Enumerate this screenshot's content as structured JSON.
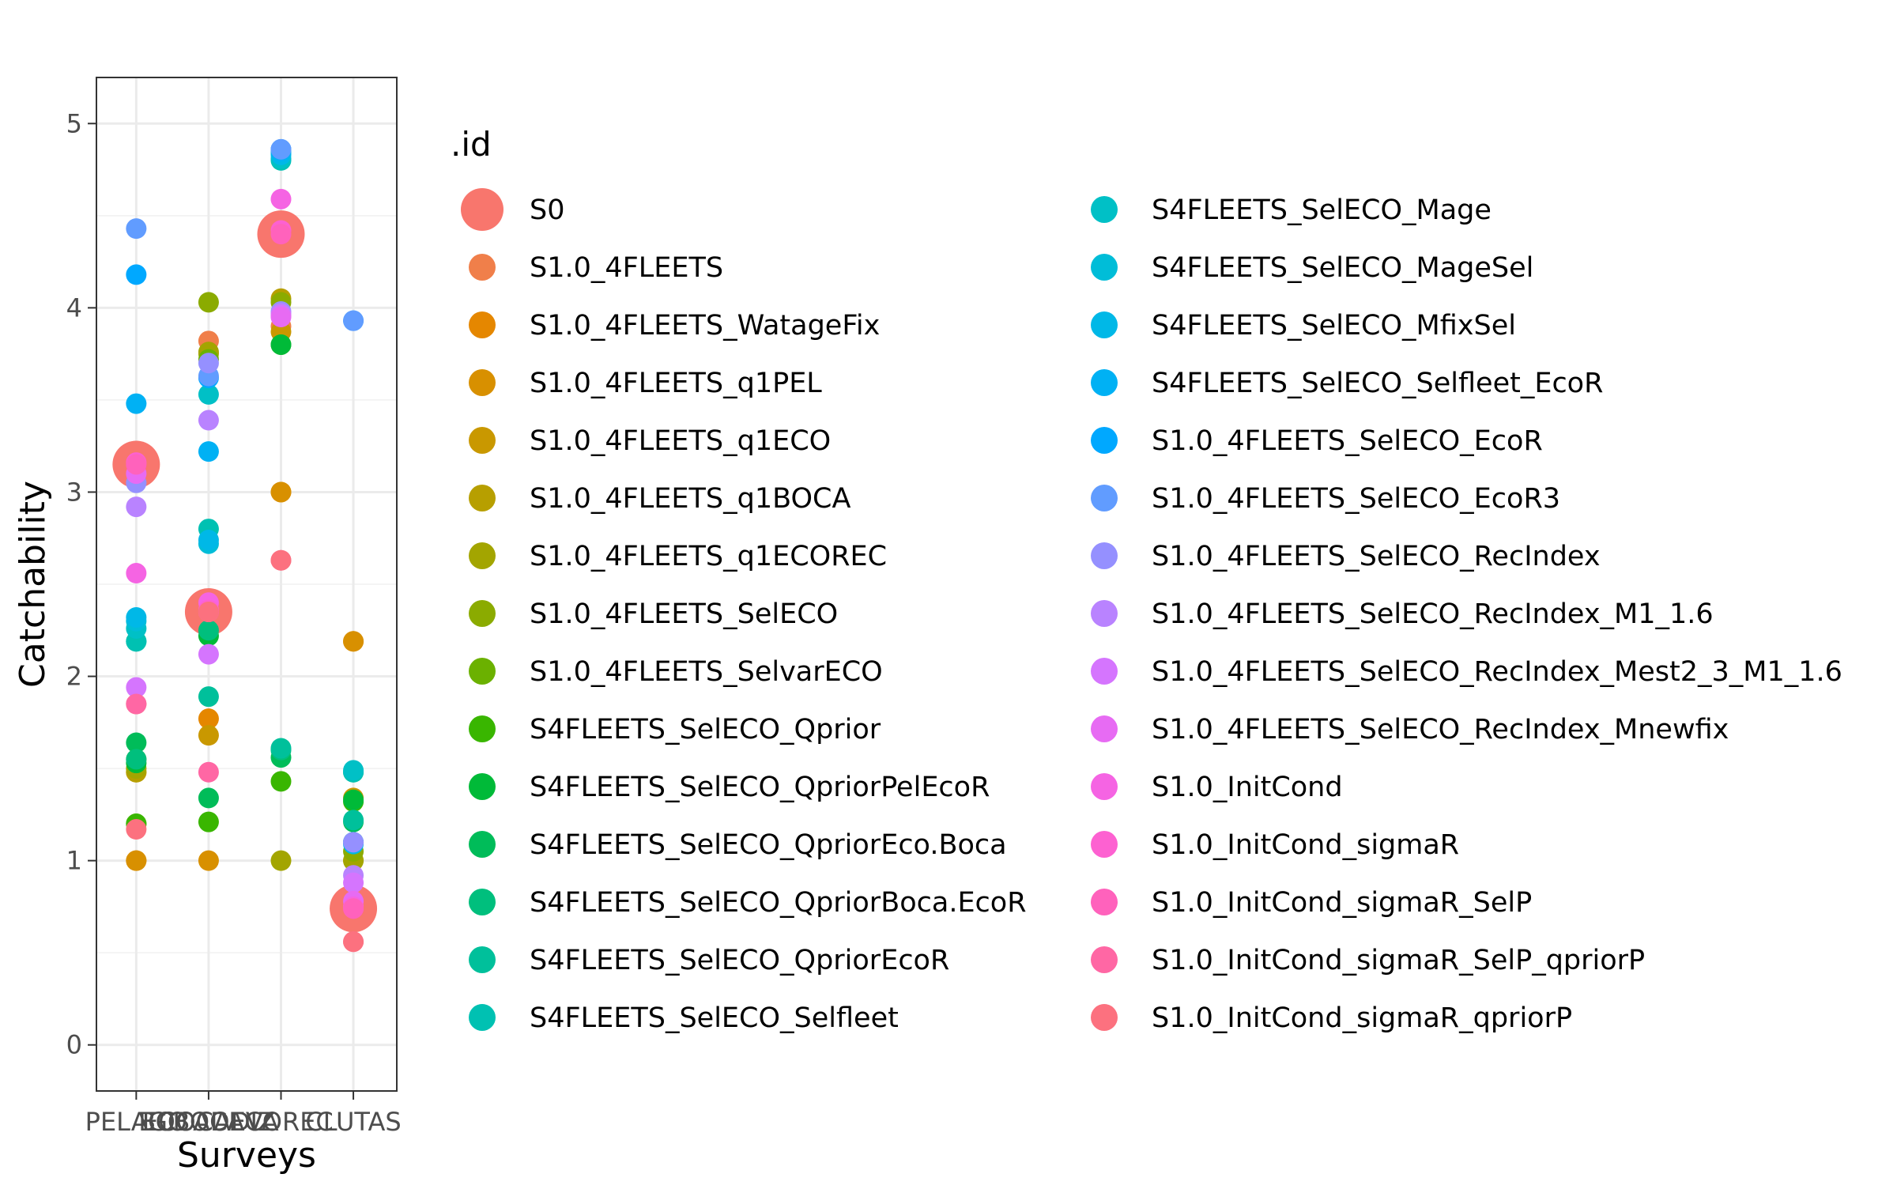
{
  "chart_data": {
    "type": "scatter",
    "xlabel": "Surveys",
    "ylabel": "Catchability",
    "categories": [
      "PELAGO",
      "ECOCADIZ",
      "BOCADEVA",
      "ECOREC",
      "BOCA",
      "CLUTAS"
    ],
    "category_positions": [
      1,
      2,
      2,
      3,
      2,
      4
    ],
    "x_tick_labels": [
      "PELAGO",
      "ECOCADIZ",
      "BOCADEVA",
      "ECOREC",
      "BOCA",
      "CLUTAS"
    ],
    "xlim": [
      0.45,
      4.6
    ],
    "ylim": [
      -0.25,
      5.25
    ],
    "y_ticks": [
      "0",
      "1",
      "2",
      "3",
      "4",
      "5"
    ],
    "grid": true,
    "legend_title": ".id",
    "legend_position": "right",
    "series": [
      {
        "name": "S0",
        "color": "#F8766D",
        "size": "large",
        "points": [
          [
            1,
            3.15
          ],
          [
            2,
            2.35
          ],
          [
            3,
            4.4
          ],
          [
            4,
            0.74
          ]
        ]
      },
      {
        "name": "S1.0_4FLEETS",
        "color": "#F07F4A",
        "points": [
          [
            1,
            1.85
          ],
          [
            2,
            3.82
          ],
          [
            3,
            3.9
          ],
          [
            4,
            0.74
          ]
        ]
      },
      {
        "name": "S1.0_4FLEETS_WatageFix",
        "color": "#E58700",
        "points": [
          [
            1,
            1.0
          ],
          [
            2,
            1.77
          ],
          [
            3,
            3.0
          ],
          [
            4,
            2.19
          ]
        ]
      },
      {
        "name": "S1.0_4FLEETS_q1PEL",
        "color": "#D89000",
        "points": [
          [
            1,
            1.0
          ],
          [
            2,
            1.0
          ],
          [
            3,
            3.0
          ],
          [
            4,
            2.19
          ]
        ]
      },
      {
        "name": "S1.0_4FLEETS_q1ECO",
        "color": "#C99800",
        "points": [
          [
            1,
            1.48
          ],
          [
            2,
            1.68
          ],
          [
            3,
            3.87
          ],
          [
            4,
            1.34
          ]
        ]
      },
      {
        "name": "S1.0_4FLEETS_q1BOCA",
        "color": "#B79F00",
        "points": [
          [
            1,
            1.48
          ],
          [
            2,
            3.75
          ],
          [
            3,
            4.05
          ],
          [
            4,
            1.0
          ]
        ]
      },
      {
        "name": "S1.0_4FLEETS_q1ECOREC",
        "color": "#A3A500",
        "points": [
          [
            1,
            1.5
          ],
          [
            2,
            3.76
          ],
          [
            3,
            1.0
          ],
          [
            4,
            1.0
          ]
        ]
      },
      {
        "name": "S1.0_4FLEETS_SelECO",
        "color": "#8BAB00",
        "points": [
          [
            1,
            1.55
          ],
          [
            2,
            4.03
          ],
          [
            3,
            4.03
          ],
          [
            4,
            1.05
          ]
        ]
      },
      {
        "name": "S1.0_4FLEETS_SelvarECO",
        "color": "#6BB100",
        "points": [
          [
            1,
            1.2
          ],
          [
            2,
            3.72
          ],
          [
            3,
            3.8
          ],
          [
            4,
            1.1
          ]
        ]
      },
      {
        "name": "S4FLEETS_SelECO_Qprior",
        "color": "#39B600",
        "points": [
          [
            1,
            1.2
          ],
          [
            2,
            1.21
          ],
          [
            3,
            1.43
          ],
          [
            4,
            1.32
          ]
        ]
      },
      {
        "name": "S4FLEETS_SelECO_QpriorPelEcoR",
        "color": "#00BA38",
        "points": [
          [
            1,
            1.53
          ],
          [
            2,
            2.22
          ],
          [
            3,
            3.8
          ],
          [
            4,
            1.33
          ]
        ]
      },
      {
        "name": "S4FLEETS_SelECO_QpriorEco.Boca",
        "color": "#00BC59",
        "points": [
          [
            1,
            1.64
          ],
          [
            2,
            1.34
          ],
          [
            3,
            1.56
          ],
          [
            4,
            1.21
          ]
        ]
      },
      {
        "name": "S4FLEETS_SelECO_QpriorBoca.EcoR",
        "color": "#00BF7D",
        "points": [
          [
            1,
            1.55
          ],
          [
            2,
            2.25
          ],
          [
            3,
            1.6
          ],
          [
            4,
            1.48
          ]
        ]
      },
      {
        "name": "S4FLEETS_SelECO_QpriorEcoR",
        "color": "#00C09B",
        "points": [
          [
            1,
            2.19
          ],
          [
            2,
            1.89
          ],
          [
            3,
            1.61
          ],
          [
            4,
            1.22
          ]
        ]
      },
      {
        "name": "S4FLEETS_SelECO_Selfleet",
        "color": "#00C1B2",
        "points": [
          [
            1,
            2.19
          ],
          [
            2,
            2.8
          ],
          [
            3,
            4.8
          ],
          [
            4,
            1.48
          ]
        ]
      },
      {
        "name": "S4FLEETS_SelECO_Mage",
        "color": "#00C0C6",
        "points": [
          [
            1,
            2.26
          ],
          [
            2,
            3.53
          ],
          [
            3,
            4.81
          ],
          [
            4,
            1.49
          ]
        ]
      },
      {
        "name": "S4FLEETS_SelECO_MageSel",
        "color": "#00BDD8",
        "points": [
          [
            1,
            2.3
          ],
          [
            2,
            2.72
          ],
          [
            3,
            4.84
          ],
          [
            4,
            1.1
          ]
        ]
      },
      {
        "name": "S4FLEETS_SelECO_MfixSel",
        "color": "#00B8E7",
        "points": [
          [
            1,
            2.32
          ],
          [
            2,
            2.74
          ],
          [
            3,
            4.83
          ],
          [
            4,
            1.09
          ]
        ]
      },
      {
        "name": "S4FLEETS_SelECO_Selfleet_EcoR",
        "color": "#00B1F4",
        "points": [
          [
            1,
            3.48
          ],
          [
            2,
            3.22
          ],
          [
            3,
            4.85
          ],
          [
            4,
            1.1
          ]
        ]
      },
      {
        "name": "S1.0_4FLEETS_SelECO_EcoR",
        "color": "#00A8FF",
        "points": [
          [
            1,
            4.18
          ],
          [
            2,
            3.62
          ],
          [
            3,
            4.86
          ],
          [
            4,
            3.93
          ]
        ]
      },
      {
        "name": "S1.0_4FLEETS_SelECO_EcoR3",
        "color": "#619CFF",
        "points": [
          [
            1,
            4.43
          ],
          [
            2,
            3.63
          ],
          [
            3,
            4.86
          ],
          [
            4,
            3.93
          ]
        ]
      },
      {
        "name": "S1.0_4FLEETS_SelECO_RecIndex",
        "color": "#9590FF",
        "points": [
          [
            1,
            3.05
          ],
          [
            2,
            3.7
          ],
          [
            3,
            3.98
          ],
          [
            4,
            1.1
          ]
        ]
      },
      {
        "name": "S1.0_4FLEETS_SelECO_RecIndex_M1_1.6",
        "color": "#B983FF",
        "points": [
          [
            1,
            2.92
          ],
          [
            2,
            3.39
          ],
          [
            3,
            3.97
          ],
          [
            4,
            0.92
          ]
        ]
      },
      {
        "name": "S1.0_4FLEETS_SelECO_RecIndex_Mest2_3_M1_1.6",
        "color": "#D575FE",
        "points": [
          [
            1,
            1.94
          ],
          [
            2,
            2.12
          ],
          [
            3,
            3.96
          ],
          [
            4,
            0.88
          ]
        ]
      },
      {
        "name": "S1.0_4FLEETS_SelECO_RecIndex_Mnewfix",
        "color": "#E76BF3",
        "points": [
          [
            1,
            3.1
          ],
          [
            2,
            2.35
          ],
          [
            3,
            3.95
          ],
          [
            4,
            0.78
          ]
        ]
      },
      {
        "name": "S1.0_InitCond",
        "color": "#F564E3",
        "points": [
          [
            1,
            2.56
          ],
          [
            2,
            2.4
          ],
          [
            3,
            4.59
          ],
          [
            4,
            0.75
          ]
        ]
      },
      {
        "name": "S1.0_InitCond_sigmaR",
        "color": "#FD61D1",
        "points": [
          [
            1,
            3.16
          ],
          [
            2,
            2.36
          ],
          [
            3,
            4.42
          ],
          [
            4,
            0.74
          ]
        ]
      },
      {
        "name": "S1.0_InitCond_sigmaR_SelP",
        "color": "#FF62BC",
        "points": [
          [
            1,
            3.15
          ],
          [
            2,
            2.35
          ],
          [
            3,
            4.4
          ],
          [
            4,
            0.74
          ]
        ]
      },
      {
        "name": "S1.0_InitCond_sigmaR_SelP_qpriorP",
        "color": "#FF67A4",
        "points": [
          [
            1,
            1.85
          ],
          [
            2,
            1.48
          ],
          [
            3,
            2.63
          ],
          [
            4,
            0.56
          ]
        ]
      },
      {
        "name": "S1.0_InitCond_sigmaR_qpriorP",
        "color": "#FC717F",
        "points": [
          [
            1,
            1.17
          ],
          [
            2,
            2.35
          ],
          [
            3,
            2.63
          ],
          [
            4,
            0.56
          ]
        ]
      }
    ]
  }
}
